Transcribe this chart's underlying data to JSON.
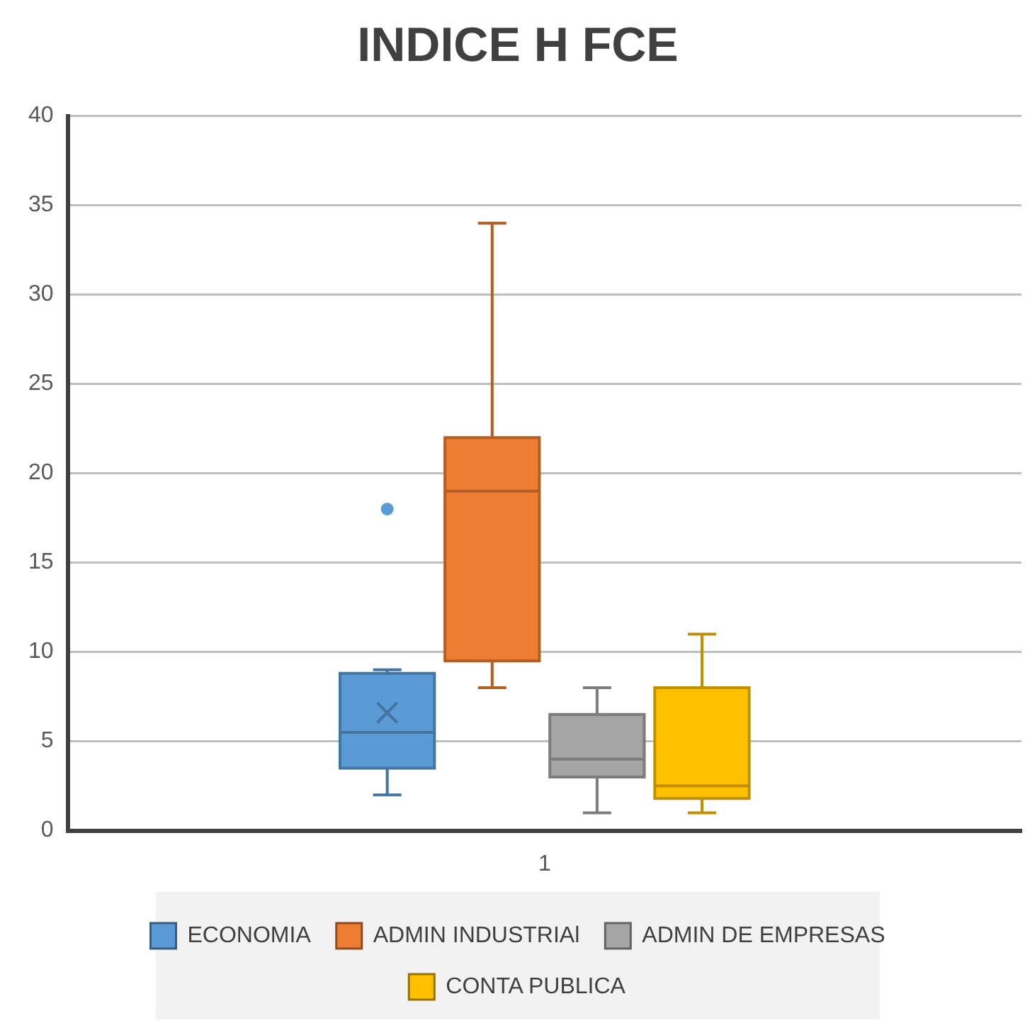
{
  "chart_data": {
    "type": "box",
    "title": "INDICE H FCE",
    "categories": [
      "1"
    ],
    "ylim": [
      0,
      40
    ],
    "yticks": [
      0,
      5,
      10,
      15,
      20,
      25,
      30,
      35,
      40
    ],
    "grid": "y",
    "legend": "bottom",
    "series": [
      {
        "name": "ECONOMIA",
        "color": "#5b9bd5",
        "boxes": [
          {
            "low": 2,
            "q1": 3.5,
            "median": 5.5,
            "q3": 8.8,
            "high": 9,
            "mean": 6.6,
            "outliers": [
              18
            ]
          }
        ]
      },
      {
        "name": "ADMIN INDUSTRIAl",
        "color": "#ed7d31",
        "boxes": [
          {
            "low": 8,
            "q1": 9.5,
            "median": 19,
            "q3": 22,
            "high": 34
          }
        ]
      },
      {
        "name": "ADMIN DE EMPRESAS",
        "color": "#a5a5a5",
        "boxes": [
          {
            "low": 1,
            "q1": 3,
            "median": 4,
            "q3": 6.5,
            "high": 8
          }
        ]
      },
      {
        "name": "CONTA PUBLICA",
        "color": "#ffc000",
        "boxes": [
          {
            "low": 1,
            "q1": 1.8,
            "median": 2.5,
            "q3": 8,
            "high": 11
          }
        ]
      }
    ]
  }
}
